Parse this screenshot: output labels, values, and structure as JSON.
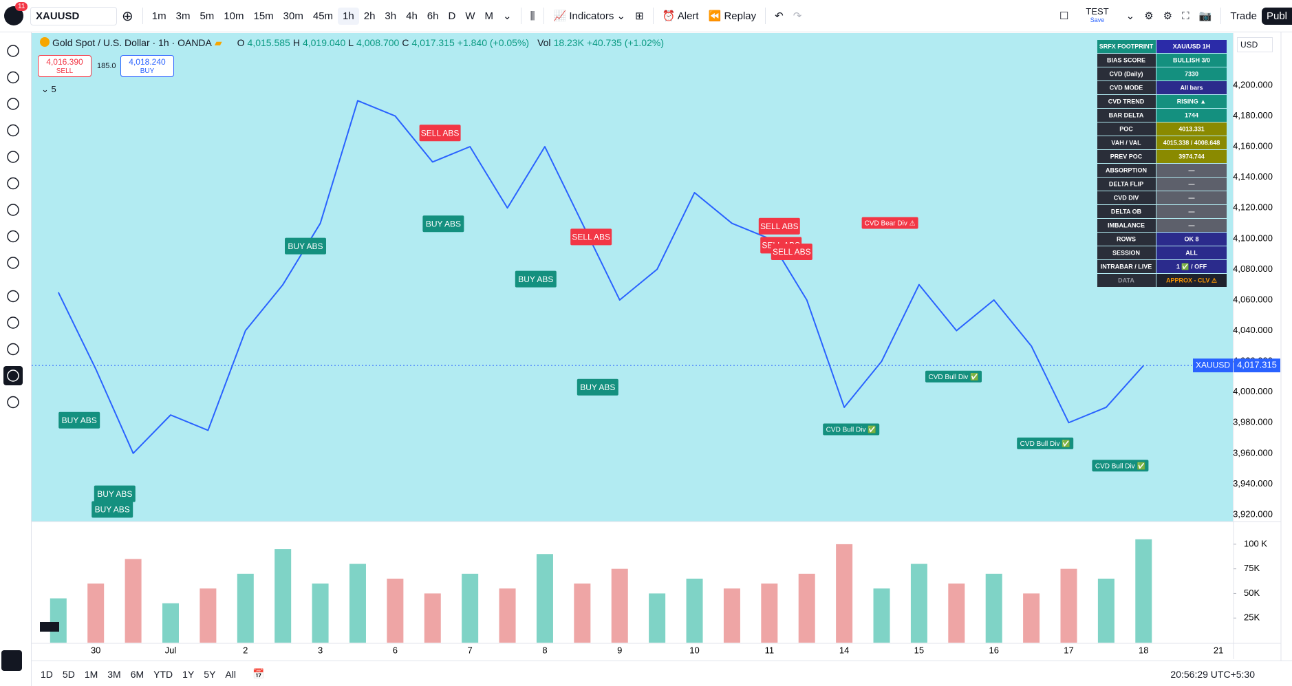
{
  "toolbar": {
    "badge": "11",
    "symbol": "XAUUSD",
    "timeframes": [
      "1m",
      "3m",
      "5m",
      "10m",
      "15m",
      "30m",
      "45m",
      "1h",
      "2h",
      "3h",
      "4h",
      "6h",
      "D",
      "W",
      "M"
    ],
    "indicators": "Indicators",
    "alert": "Alert",
    "replay": "Replay",
    "layout": "TEST",
    "save": "Save",
    "trade": "Trade",
    "publish": "Publ"
  },
  "legend": {
    "title": "Gold Spot / U.S. Dollar · 1h · OANDA",
    "o_label": "O",
    "open": "4,015.585",
    "h_label": "H",
    "high": "4,019.040",
    "l_label": "L",
    "low": "4,008.700",
    "c_label": "C",
    "close": "4,017.315",
    "change": "+1.840 (+0.05%)",
    "vol_label": "Vol",
    "vol": "18.23K",
    "vol_change": "+40.735 (+1.02%)",
    "count": "5"
  },
  "order": {
    "sell_price": "4,016.390",
    "sell": "SELL",
    "spread": "185.0",
    "buy_price": "4,018.240",
    "buy": "BUY"
  },
  "panel": {
    "rows": [
      [
        "SRFX FOOTPRINT",
        "XAU/USD 1H"
      ],
      [
        "BIAS SCORE",
        "BULLISH 3/0"
      ],
      [
        "CVD (Daily)",
        "7330"
      ],
      [
        "CVD MODE",
        "All bars"
      ],
      [
        "CVD TREND",
        "RISING ▲"
      ],
      [
        "BAR DELTA",
        "1744"
      ],
      [
        "POC",
        "4013.331"
      ],
      [
        "VAH / VAL",
        "4015.338 / 4008.648"
      ],
      [
        "PREV POC",
        "3974.744"
      ],
      [
        "ABSORPTION",
        "—"
      ],
      [
        "DELTA FLIP",
        "—"
      ],
      [
        "CVD DIV",
        "—"
      ],
      [
        "DELTA OB",
        "—"
      ],
      [
        "IMBALANCE",
        "—"
      ],
      [
        "ROWS",
        "OK 8"
      ],
      [
        "SESSION",
        "ALL"
      ],
      [
        "INTRABAR / LIVE",
        "1 ✅ / OFF"
      ],
      [
        "DATA",
        "APPROX - CLV ⚠"
      ]
    ]
  },
  "currency": "USD",
  "bottom_bar": {
    "ranges": [
      "1D",
      "5D",
      "1M",
      "3M",
      "6M",
      "YTD",
      "1Y",
      "5Y",
      "All"
    ],
    "time": "20:56:29 UTC+5:30"
  },
  "chart_data": [
    {
      "type": "line",
      "symbol_tag": "XAUUSD",
      "color": "#2962ff",
      "categories": [
        null,
        "30",
        null,
        "Jul",
        null,
        "2",
        null,
        "3",
        null,
        "6",
        null,
        "7",
        null,
        "8",
        null,
        "9",
        null,
        "10",
        null,
        "11",
        null,
        "14",
        null,
        "15",
        null,
        "16",
        null,
        "17",
        null,
        "18",
        null,
        "21"
      ],
      "values": [
        4065,
        4015,
        3960,
        3985,
        3975,
        4040,
        4070,
        4110,
        4190,
        4180,
        4150,
        4160,
        4120,
        4160,
        4110,
        4060,
        4080,
        4130,
        4110,
        4100,
        4060,
        3990,
        4020,
        4070,
        4040,
        4060,
        4030,
        3980,
        3990,
        4017.315,
        null,
        null
      ],
      "last_price": {
        "value": 4017.315,
        "label": "4,017.315"
      },
      "ylim": [
        3915.5,
        4234.1
      ],
      "yticks": [
        {
          "value": 3920,
          "label": "3,920.000"
        },
        {
          "value": 3940,
          "label": "3,940.000"
        },
        {
          "value": 3960,
          "label": "3,960.000"
        },
        {
          "value": 3980,
          "label": "3,980.000"
        },
        {
          "value": 4000,
          "label": "4,000.000"
        },
        {
          "value": 4020,
          "label": "4,020.000"
        },
        {
          "value": 4040,
          "label": "4,040.000"
        },
        {
          "value": 4060,
          "label": "4,060.000"
        },
        {
          "value": 4080,
          "label": "4,080.000"
        },
        {
          "value": 4100,
          "label": "4,100.000"
        },
        {
          "value": 4120,
          "label": "4,120.000"
        },
        {
          "value": 4140,
          "label": "4,140.000"
        },
        {
          "value": 4160,
          "label": "4,160.000"
        },
        {
          "value": 4180,
          "label": "4,180.000"
        },
        {
          "value": 4200,
          "label": "4,200.000"
        }
      ],
      "annotations": [
        "SELL ABS",
        "BUY ABS",
        "BUY ABS",
        "SELL ABS",
        "BUY ABS",
        "BUY ABS",
        "BUY ABS",
        "BUY ABS",
        "BUY ABS",
        "SELL ABS",
        "SELL ABS",
        "SELL ABS",
        "CVD Bear Div ⚠",
        "CVD Bull Div ✅",
        "CVD Bull Div ✅",
        "CVD Bull Div ✅",
        "CVD Bull Div ✅"
      ]
    },
    {
      "type": "bar",
      "up_color": "#7fd3c6",
      "down_color": "#eea5a5",
      "values": [
        45000,
        60000,
        85000,
        40000,
        55000,
        70000,
        95000,
        60000,
        80000,
        65000,
        50000,
        70000,
        55000,
        90000,
        60000,
        75000,
        50000,
        65000,
        55000,
        60000,
        70000,
        100000,
        55000,
        80000,
        60000,
        70000,
        50000,
        75000,
        65000,
        105000,
        null,
        null
      ],
      "ylim": [
        0,
        123000
      ],
      "yticks": [
        {
          "value": 25000,
          "label": "25K"
        },
        {
          "value": 50000,
          "label": "50K"
        },
        {
          "value": 75000,
          "label": "75K"
        },
        {
          "value": 100000,
          "label": "100 K"
        }
      ]
    }
  ]
}
